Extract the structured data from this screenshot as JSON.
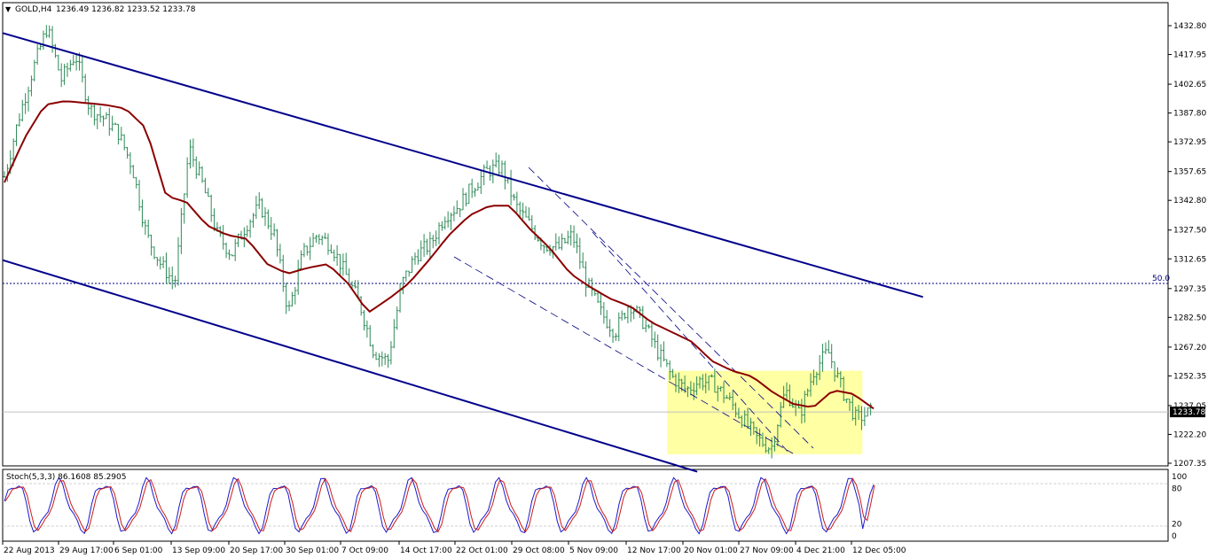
{
  "header": {
    "symbol": "GOLD,H4",
    "ohlc": "1236.49 1236.82 1233.52 1233.78",
    "menu_icon": "triangle-down-icon"
  },
  "price_axis": {
    "ticks": [
      "1432.80",
      "1417.95",
      "1402.65",
      "1387.80",
      "1372.95",
      "1357.65",
      "1342.80",
      "1327.50",
      "1312.65",
      "1297.35",
      "1282.50",
      "1267.20",
      "1252.35",
      "1237.05",
      "1222.20",
      "1207.35"
    ],
    "current_price": "1233.78",
    "current_price_value": 1233.78
  },
  "time_axis": {
    "labels": [
      "22 Aug 2013",
      "29 Aug 17:00",
      "6 Sep 01:00",
      "13 Sep 09:00",
      "20 Sep 17:00",
      "30 Sep 01:00",
      "7 Oct 09:00",
      "14 Oct 17:00",
      "22 Oct 01:00",
      "29 Oct 08:00",
      "5 Nov 09:00",
      "12 Nov 17:00",
      "20 Nov 01:00",
      "27 Nov 09:00",
      "4 Dec 21:00",
      "12 Dec 05:00"
    ]
  },
  "fibo_label": "50.0",
  "stoch": {
    "label": "Stoch(5,3,3) 86.1608 85.2905",
    "scale_labels": [
      "100",
      "80",
      "20",
      "0"
    ]
  },
  "colors": {
    "candles": "#2e8b57",
    "moving_average": "#8b0000",
    "channel": "#00008b",
    "fibo_line": "#000080",
    "highlight": "#ffff99",
    "stoch_main": "#1a1acc",
    "stoch_signal": "#cc1a1a",
    "price_box": "#000000"
  },
  "chart_data": {
    "type": "candlestick",
    "title": "GOLD,H4",
    "timeframe": "H4",
    "ylim": [
      1200,
      1440
    ],
    "x": [
      "22 Aug 2013",
      "29 Aug 17:00",
      "6 Sep 01:00",
      "13 Sep 09:00",
      "20 Sep 17:00",
      "30 Sep 01:00",
      "7 Oct 09:00",
      "14 Oct 17:00",
      "22 Oct 01:00",
      "29 Oct 08:00",
      "5 Nov 09:00",
      "12 Nov 17:00",
      "20 Nov 01:00",
      "27 Nov 09:00",
      "4 Dec 21:00",
      "12 Dec 05:00"
    ],
    "close_path": [
      1355,
      1385,
      1410,
      1432,
      1405,
      1418,
      1390,
      1385,
      1378,
      1360,
      1325,
      1310,
      1300,
      1370,
      1350,
      1325,
      1315,
      1330,
      1340,
      1325,
      1285,
      1315,
      1325,
      1320,
      1305,
      1290,
      1265,
      1260,
      1300,
      1315,
      1320,
      1335,
      1340,
      1350,
      1358,
      1360,
      1340,
      1330,
      1320,
      1318,
      1325,
      1300,
      1285,
      1275,
      1290,
      1280,
      1265,
      1252,
      1245,
      1250,
      1248,
      1240,
      1230,
      1220,
      1215,
      1245,
      1232,
      1255,
      1265,
      1245,
      1230,
      1233.78
    ],
    "moving_average_path": [
      1352,
      1375,
      1392,
      1394,
      1393,
      1392,
      1390,
      1380,
      1345,
      1342,
      1330,
      1325,
      1323,
      1310,
      1305,
      1308,
      1310,
      1300,
      1285,
      1292,
      1300,
      1312,
      1325,
      1335,
      1340,
      1340,
      1328,
      1318,
      1305,
      1298,
      1292,
      1288,
      1280,
      1275,
      1270,
      1260,
      1255,
      1252,
      1244,
      1238,
      1236,
      1245,
      1243,
      1235.5
    ],
    "channel_upper": [
      [
        0,
        1429
      ],
      [
        0.7897,
        1293
      ]
    ],
    "channel_lower": [
      [
        0,
        1312
      ],
      [
        0.596,
        1203
      ]
    ],
    "fibo_level": {
      "label": "50.0",
      "value": 1300
    },
    "highlight_zone": {
      "x": [
        0.5702,
        0.7377
      ],
      "y": [
        1212,
        1255
      ]
    },
    "stochastic": {
      "params": "5,3,3",
      "main": 86.1608,
      "signal": 85.2905,
      "levels": [
        20,
        80
      ],
      "range": [
        0,
        100
      ]
    }
  }
}
